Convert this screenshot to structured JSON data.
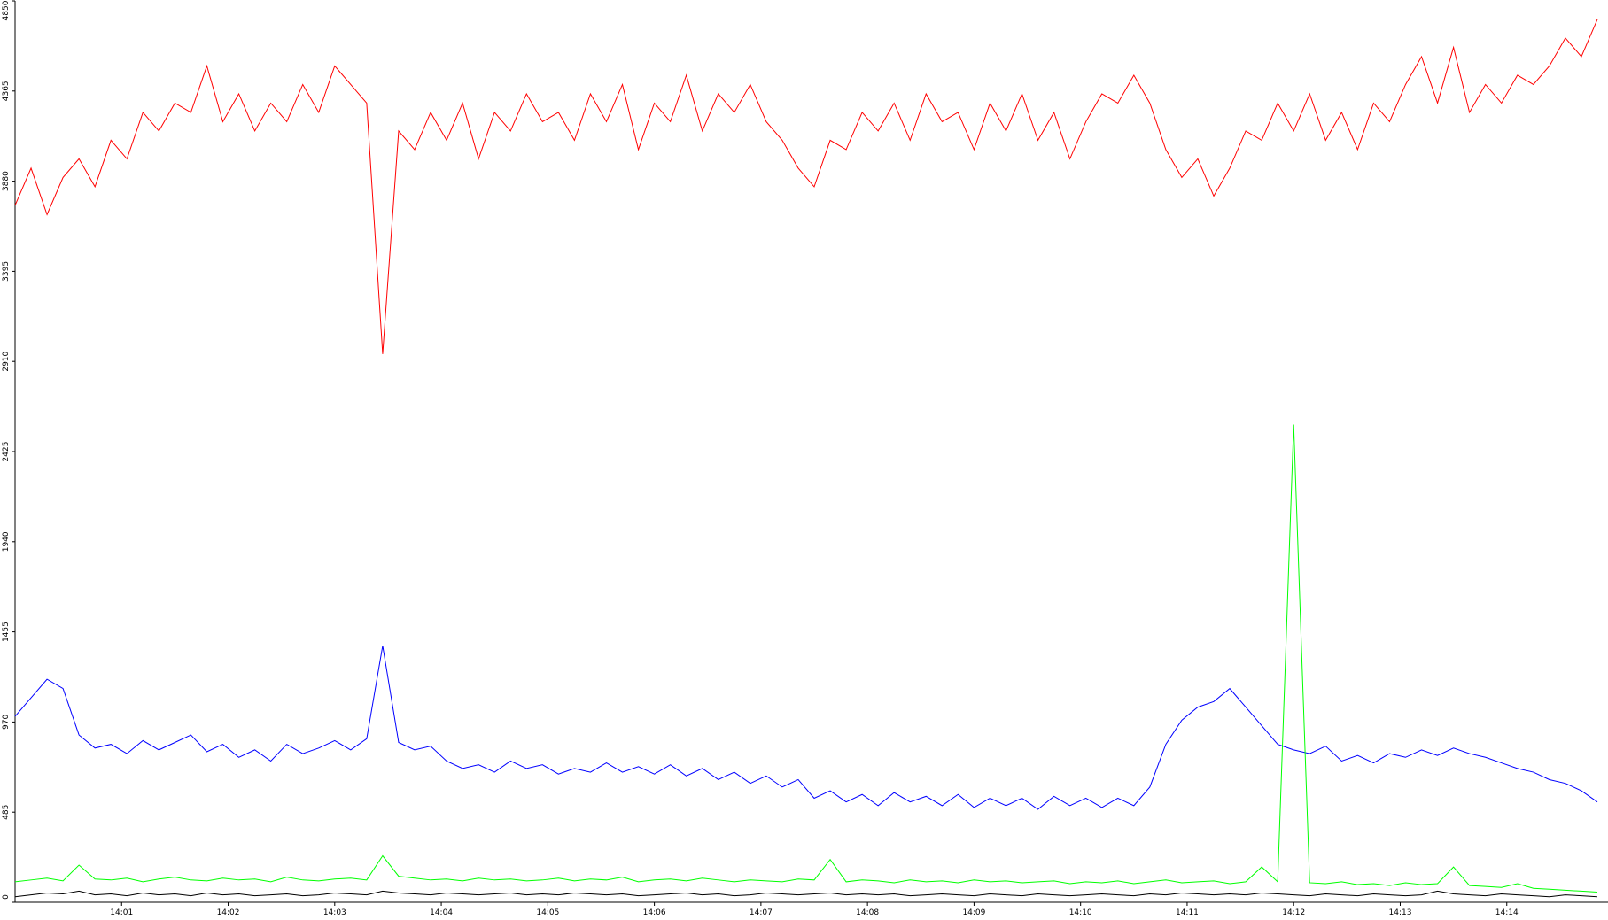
{
  "chart_data": {
    "type": "line",
    "x": [
      0,
      0.15,
      0.3,
      0.45,
      0.6,
      0.75,
      0.9,
      1.05,
      1.2,
      1.35,
      1.5,
      1.65,
      1.8,
      1.95,
      2.1,
      2.25,
      2.4,
      2.55,
      2.7,
      2.85,
      3,
      3.15,
      3.3,
      3.45,
      3.6,
      3.75,
      3.9,
      4.05,
      4.2,
      4.35,
      4.5,
      4.65,
      4.8,
      4.95,
      5.1,
      5.25,
      5.4,
      5.55,
      5.7,
      5.85,
      6,
      6.15,
      6.3,
      6.45,
      6.6,
      6.75,
      6.9,
      7.05,
      7.2,
      7.35,
      7.5,
      7.65,
      7.8,
      7.95,
      8.1,
      8.25,
      8.4,
      8.55,
      8.7,
      8.85,
      9,
      9.15,
      9.3,
      9.45,
      9.6,
      9.75,
      9.9,
      10.05,
      10.2,
      10.35,
      10.5,
      10.65,
      10.8,
      10.95,
      11.1,
      11.25,
      11.4,
      11.55,
      11.7,
      11.85,
      12,
      12.15,
      12.3,
      12.45,
      12.6,
      12.75,
      12.9,
      13.05,
      13.2,
      13.35,
      13.5,
      13.65,
      13.8,
      13.95,
      14.1,
      14.25,
      14.4,
      14.55,
      14.7,
      14.85
    ],
    "series": [
      {
        "color": "#ff0000",
        "values": [
          3750,
          3950,
          3700,
          3900,
          4000,
          3850,
          4100,
          4000,
          4250,
          4150,
          4300,
          4250,
          4500,
          4200,
          4350,
          4150,
          4300,
          4200,
          4400,
          4250,
          4500,
          4400,
          4300,
          2950,
          4150,
          4050,
          4250,
          4100,
          4300,
          4000,
          4250,
          4150,
          4350,
          4200,
          4250,
          4100,
          4350,
          4200,
          4400,
          4050,
          4300,
          4200,
          4450,
          4150,
          4350,
          4250,
          4400,
          4200,
          4100,
          3950,
          3850,
          4100,
          4050,
          4250,
          4150,
          4300,
          4100,
          4350,
          4200,
          4250,
          4050,
          4300,
          4150,
          4350,
          4100,
          4250,
          4000,
          4200,
          4350,
          4300,
          4450,
          4300,
          4050,
          3900,
          4000,
          3800,
          3950,
          4150,
          4100,
          4300,
          4150,
          4350,
          4100,
          4250,
          4050,
          4300,
          4200,
          4400,
          4550,
          4300,
          4600,
          4250,
          4400,
          4300,
          4450,
          4400,
          4500,
          4650,
          4550,
          4750
        ]
      },
      {
        "color": "#0000ff",
        "values": [
          1000,
          1100,
          1200,
          1150,
          900,
          830,
          850,
          800,
          870,
          820,
          860,
          900,
          810,
          850,
          780,
          820,
          760,
          850,
          800,
          830,
          870,
          820,
          880,
          1380,
          860,
          820,
          840,
          760,
          720,
          740,
          700,
          760,
          720,
          740,
          690,
          720,
          700,
          750,
          700,
          730,
          690,
          740,
          680,
          720,
          660,
          700,
          640,
          680,
          620,
          660,
          560,
          600,
          540,
          580,
          520,
          590,
          540,
          570,
          520,
          580,
          510,
          560,
          520,
          560,
          500,
          570,
          520,
          560,
          510,
          560,
          520,
          620,
          850,
          980,
          1050,
          1080,
          1150,
          1050,
          950,
          850,
          820,
          800,
          840,
          760,
          790,
          750,
          800,
          780,
          820,
          790,
          830,
          800,
          780,
          750,
          720,
          700,
          660,
          640,
          600,
          540
        ]
      },
      {
        "color": "#00ff00",
        "values": [
          110,
          120,
          130,
          115,
          200,
          125,
          120,
          130,
          110,
          125,
          135,
          120,
          115,
          130,
          120,
          125,
          110,
          135,
          120,
          115,
          125,
          130,
          120,
          250,
          140,
          130,
          120,
          125,
          115,
          130,
          120,
          125,
          115,
          120,
          130,
          115,
          125,
          120,
          135,
          110,
          120,
          125,
          115,
          130,
          120,
          110,
          120,
          115,
          110,
          125,
          120,
          230,
          110,
          120,
          115,
          105,
          120,
          110,
          115,
          105,
          120,
          110,
          115,
          105,
          110,
          115,
          100,
          110,
          105,
          115,
          100,
          110,
          120,
          105,
          110,
          115,
          100,
          110,
          190,
          110,
          2570,
          105,
          100,
          110,
          95,
          100,
          90,
          105,
          95,
          100,
          190,
          90,
          85,
          80,
          100,
          75,
          70,
          65,
          60,
          55
        ]
      },
      {
        "color": "#000000",
        "values": [
          30,
          40,
          50,
          45,
          60,
          40,
          45,
          35,
          50,
          40,
          45,
          35,
          50,
          40,
          45,
          35,
          40,
          45,
          35,
          40,
          50,
          45,
          40,
          60,
          50,
          45,
          40,
          50,
          45,
          40,
          45,
          50,
          40,
          45,
          40,
          50,
          45,
          40,
          45,
          35,
          40,
          45,
          50,
          40,
          45,
          35,
          40,
          50,
          45,
          40,
          45,
          50,
          40,
          45,
          40,
          45,
          35,
          40,
          45,
          40,
          35,
          45,
          40,
          35,
          45,
          40,
          35,
          40,
          45,
          40,
          35,
          45,
          40,
          50,
          45,
          40,
          45,
          40,
          50,
          45,
          40,
          35,
          45,
          40,
          35,
          45,
          40,
          35,
          40,
          60,
          45,
          40,
          35,
          45,
          40,
          35,
          30,
          40,
          35,
          30
        ]
      }
    ],
    "xlim": [
      0,
      14.95
    ],
    "xticks": [
      {
        "value": 1,
        "label": "14:01"
      },
      {
        "value": 2,
        "label": "14:02"
      },
      {
        "value": 3,
        "label": "14:03"
      },
      {
        "value": 4,
        "label": "14:04"
      },
      {
        "value": 5,
        "label": "14:05"
      },
      {
        "value": 6,
        "label": "14:06"
      },
      {
        "value": 7,
        "label": "14:07"
      },
      {
        "value": 8,
        "label": "14:08"
      },
      {
        "value": 9,
        "label": "14:09"
      },
      {
        "value": 10,
        "label": "14:10"
      },
      {
        "value": 11,
        "label": "14:11"
      },
      {
        "value": 12,
        "label": "14:12"
      },
      {
        "value": 13,
        "label": "14:13"
      },
      {
        "value": 14,
        "label": "14:14"
      }
    ],
    "ylim": [
      0,
      4850
    ],
    "yticks": [
      0,
      485,
      970,
      1455,
      1940,
      2425,
      2910,
      3395,
      3880,
      4365,
      4850
    ]
  }
}
